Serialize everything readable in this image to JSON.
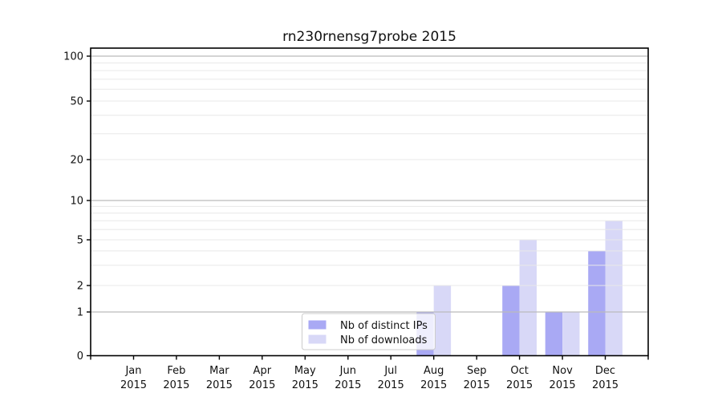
{
  "title": "rn230rnensg7probe 2015",
  "chart_data": {
    "type": "bar",
    "title": "rn230rnensg7probe 2015",
    "year": "2015",
    "categories": [
      "Jan",
      "Feb",
      "Mar",
      "Apr",
      "May",
      "Jun",
      "Jul",
      "Aug",
      "Sep",
      "Oct",
      "Nov",
      "Dec"
    ],
    "series": [
      {
        "name": "Nb of distinct IPs",
        "color": "#a9a9f4",
        "values": [
          0,
          0,
          0,
          0,
          0,
          0,
          0,
          1,
          0,
          2,
          1,
          4
        ]
      },
      {
        "name": "Nb of downloads",
        "color": "#d8d8f7",
        "values": [
          0,
          0,
          0,
          0,
          0,
          0,
          0,
          2,
          0,
          5,
          1,
          7
        ]
      }
    ],
    "yticks": [
      100,
      50,
      20,
      10,
      5,
      2,
      1,
      0
    ],
    "scale": "symlog",
    "ylim": [
      0,
      130
    ],
    "grid": true,
    "legend_position": "lower center",
    "colors": {
      "major_grid": "#bbbbbb",
      "minor_grid": "#e8e8e8",
      "axis": "#000000",
      "legend_border": "#cccccc"
    }
  }
}
